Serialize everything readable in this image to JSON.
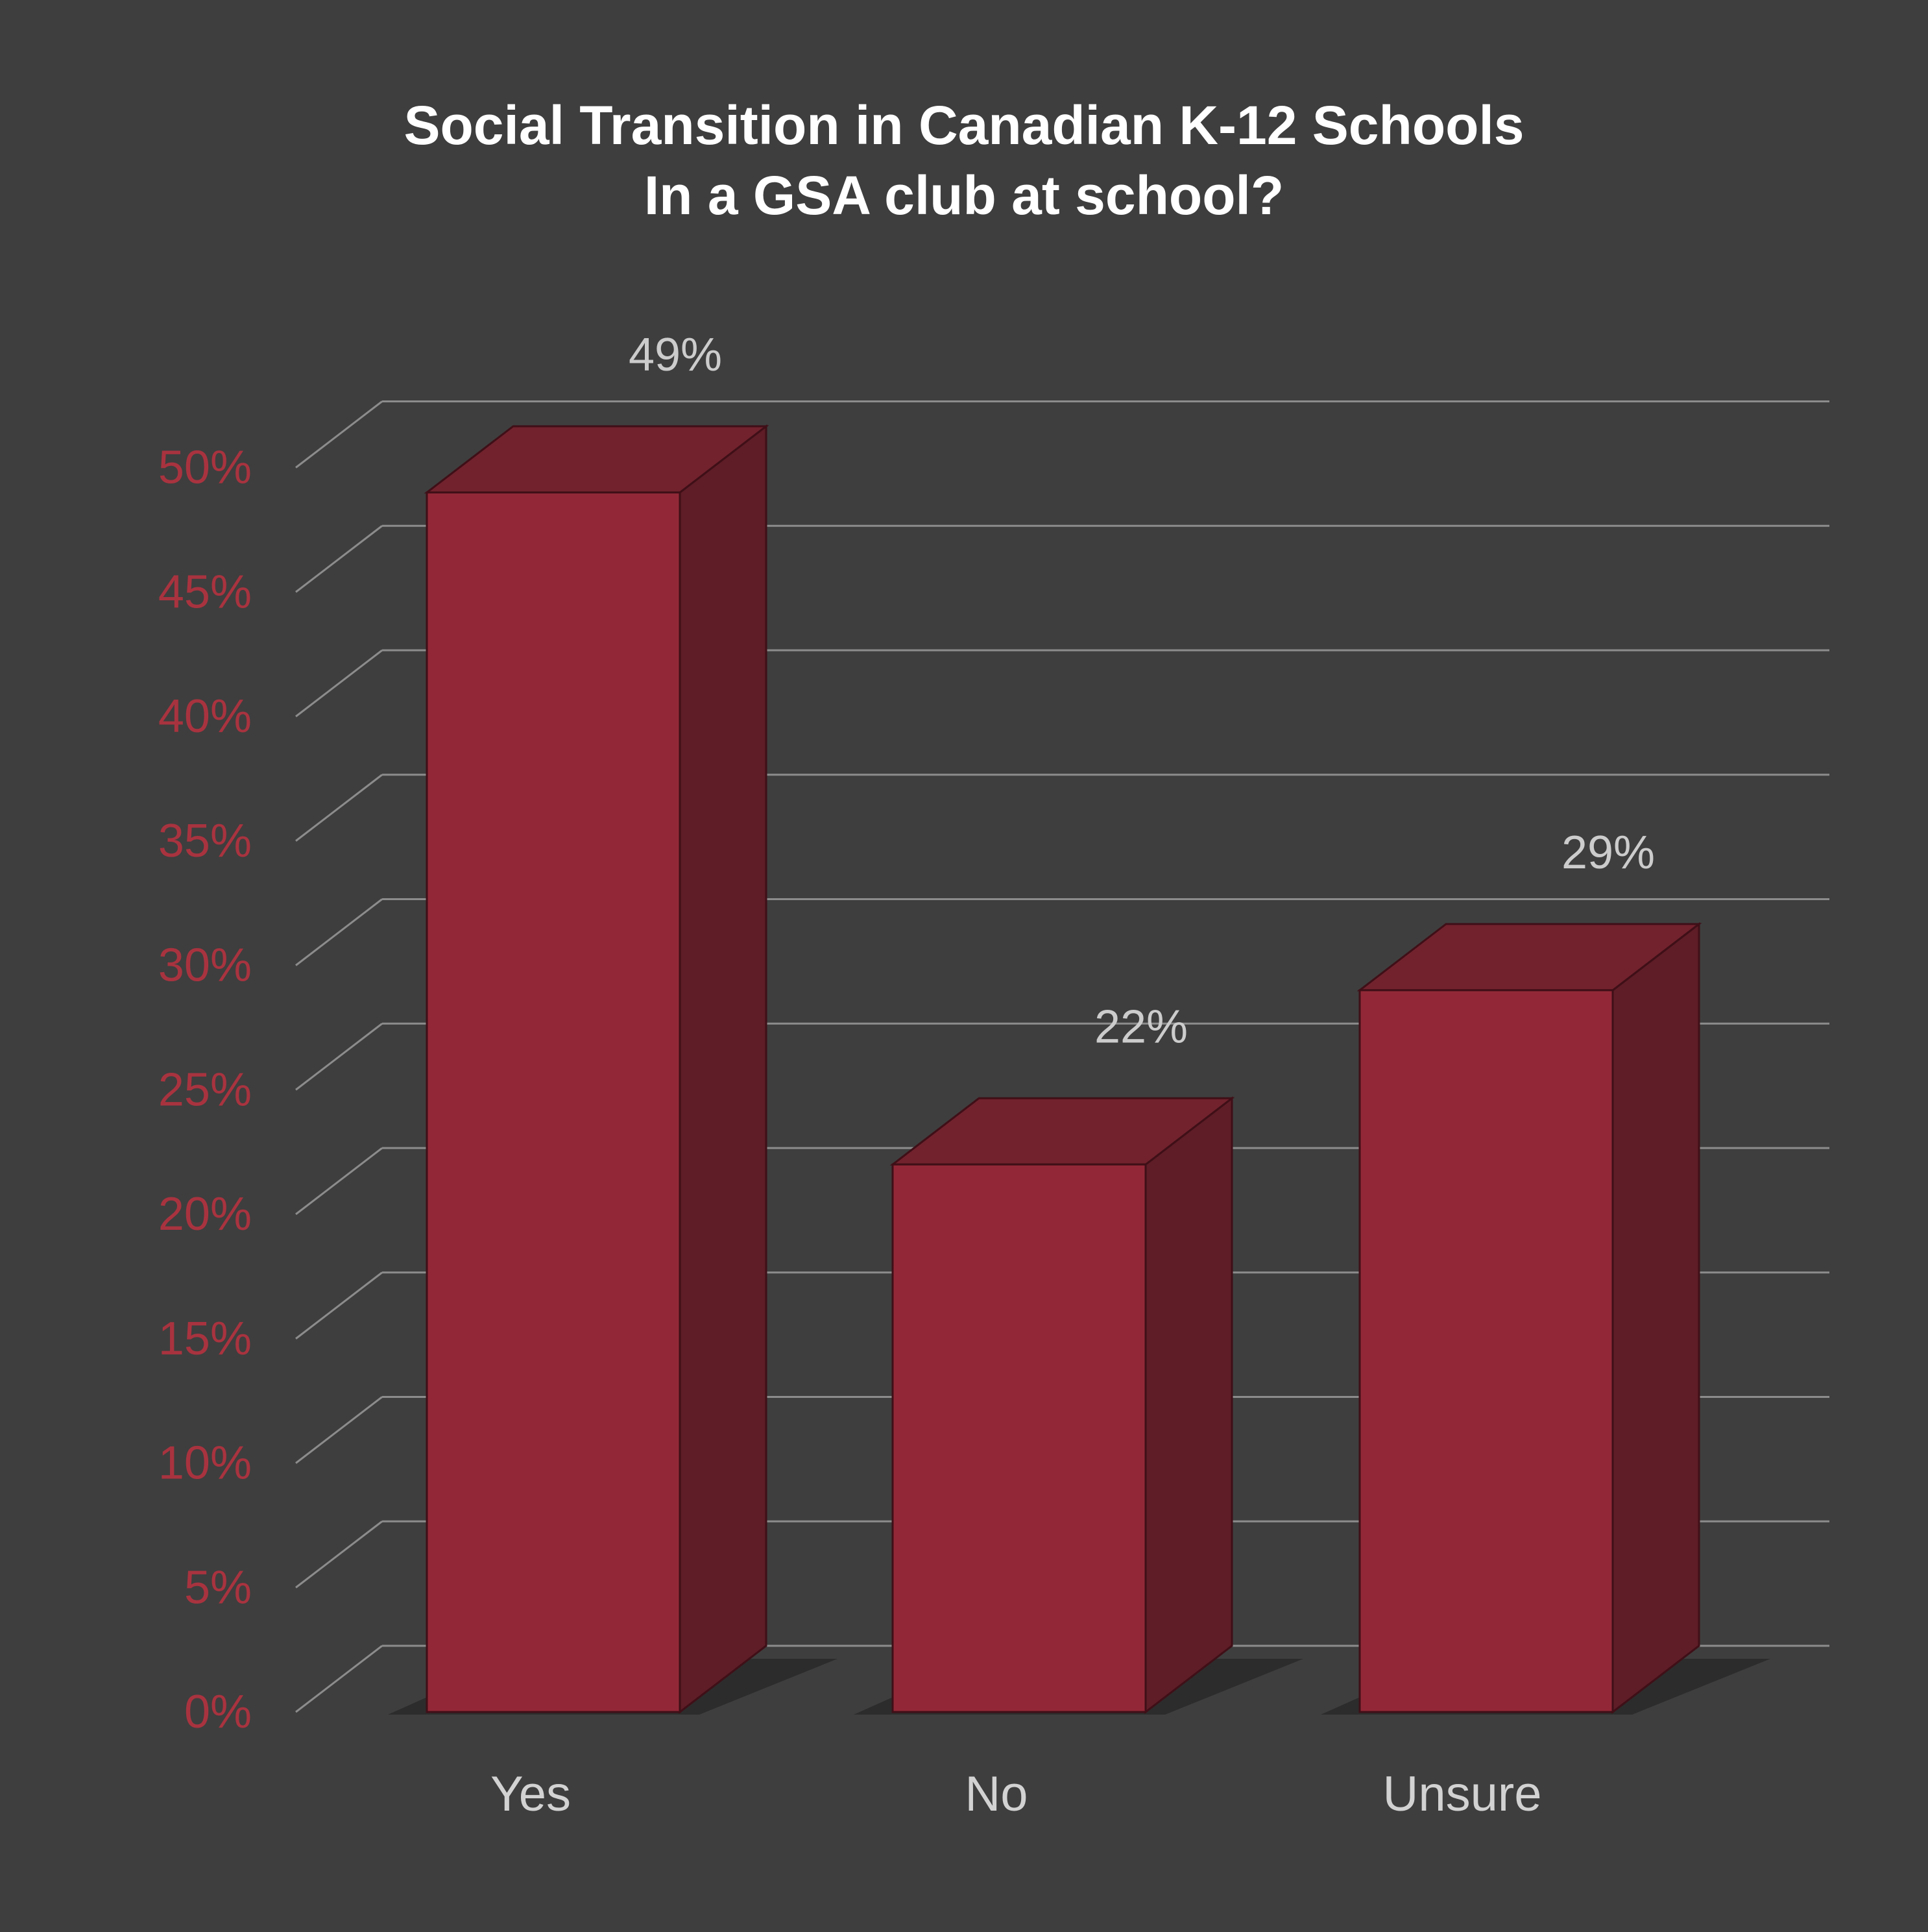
{
  "chart_data": {
    "type": "bar",
    "title": "Social Transition in Canadian K-12 Schools",
    "subtitle": "In a GSA club at school?",
    "categories": [
      "Yes",
      "No",
      "Unsure"
    ],
    "values": [
      49,
      22,
      29
    ],
    "value_labels": [
      "49%",
      "22%",
      "29%"
    ],
    "y_ticks": [
      0,
      5,
      10,
      15,
      20,
      25,
      30,
      35,
      40,
      45,
      50
    ],
    "y_tick_labels": [
      "0%",
      "5%",
      "10%",
      "15%",
      "20%",
      "25%",
      "30%",
      "35%",
      "40%",
      "45%",
      "50%"
    ],
    "ylim": [
      0,
      50
    ],
    "xlabel": "",
    "ylabel": "",
    "grid": true,
    "legend": "none",
    "three_d": true
  },
  "colors": {
    "background": "#3e3e3e",
    "bar_front": "#922837",
    "bar_side": "#5e1d27",
    "bar_top": "#71222d",
    "bar_edge": "#3f0f17",
    "grid": "#8c8c8c",
    "y_tick_label": "#a8333f",
    "category_label": "#d2d2d2",
    "value_label": "#cccccc",
    "title": "#ffffff"
  }
}
